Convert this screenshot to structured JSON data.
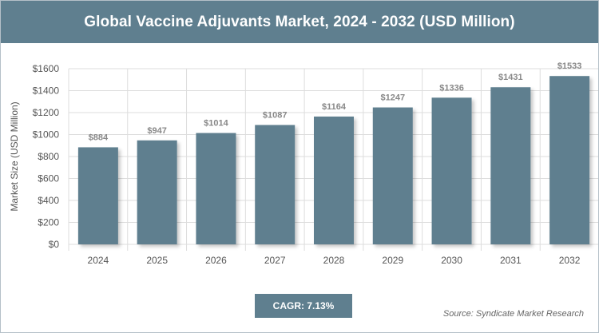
{
  "header": {
    "title": "Global Vaccine Adjuvants Market, 2024 - 2032 (USD Million)"
  },
  "footer": {
    "cagr": "CAGR: 7.13%",
    "source": "Source: Syndicate Market Research"
  },
  "colors": {
    "bar": "#5f7f8f",
    "title_bg": "#5f7f8f",
    "grid": "#dddddd",
    "axis_text": "#555555",
    "label_text": "#888888"
  },
  "chart_data": {
    "type": "bar",
    "title": "Global Vaccine Adjuvants Market, 2024 - 2032 (USD Million)",
    "xlabel": "",
    "ylabel": "Market Size (USD Million)",
    "categories": [
      "2024",
      "2025",
      "2026",
      "2027",
      "2028",
      "2029",
      "2030",
      "2031",
      "2032"
    ],
    "values": [
      884,
      947,
      1014,
      1087,
      1164,
      1247,
      1336,
      1431,
      1533
    ],
    "value_labels": [
      "$884",
      "$947",
      "$1014",
      "$1087",
      "$1164",
      "$1247",
      "$1336",
      "$1431",
      "$1533"
    ],
    "ylim": [
      0,
      1600
    ],
    "yticks": [
      0,
      200,
      400,
      600,
      800,
      1000,
      1200,
      1400,
      1600
    ],
    "ytick_labels": [
      "$0",
      "$200",
      "$400",
      "$600",
      "$800",
      "$1000",
      "$1200",
      "$1400",
      "$1600"
    ],
    "grid": true
  }
}
